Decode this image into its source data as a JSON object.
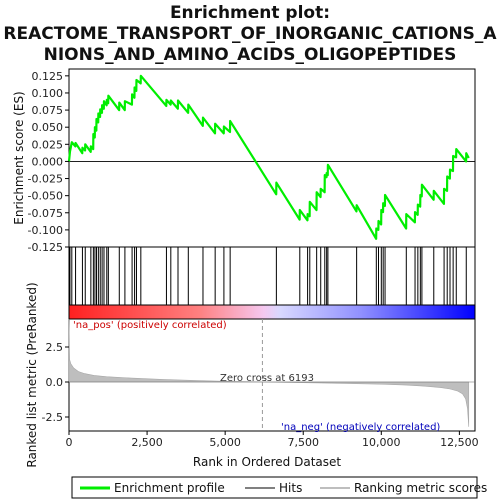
{
  "chart_data": {
    "type": "line",
    "title_lines": [
      "Enrichment plot:",
      "REACTOME_TRANSPORT_OF_INORGANIC_CATIONS_A",
      "NIONS_AND_AMINO_ACIDS_OLIGOPEPTIDES"
    ],
    "xlabel": "Rank in Ordered Dataset",
    "ylabel_top": "Enrichment score (ES)",
    "ylabel_bottom": "Ranked list metric (PreRanked)",
    "x_range": [
      0,
      13000
    ],
    "x_ticks": [
      0,
      2500,
      5000,
      7500,
      10000,
      12500
    ],
    "x_tick_labels": [
      "0",
      "2,500",
      "5,000",
      "7,500",
      "10,000",
      "12,500"
    ],
    "es_ylim": [
      -0.125,
      0.135
    ],
    "es_ticks": [
      0.125,
      0.1,
      0.075,
      0.05,
      0.025,
      0.0,
      -0.025,
      -0.05,
      -0.075,
      -0.1,
      -0.125
    ],
    "es_tick_labels": [
      "0.125",
      "0.100",
      "0.075",
      "0.050",
      "0.025",
      "0.000",
      "-0.025",
      "-0.050",
      "-0.075",
      "-0.100",
      "-0.125"
    ],
    "metric_ylim": [
      -3.5,
      4.5
    ],
    "metric_ticks": [
      2.5,
      0.0,
      -2.5
    ],
    "metric_tick_labels": [
      "2.5",
      "0.0",
      "-2.5"
    ],
    "zero_cross_label": "Zero cross at 6193",
    "zero_cross_x": 6193,
    "pos_label": "'na_pos' (positively correlated)",
    "neg_label": "'na_neg' (negatively correlated)",
    "n_genes": 12800,
    "hits": [
      30,
      90,
      210,
      430,
      520,
      700,
      780,
      830,
      880,
      940,
      1000,
      1060,
      1120,
      1210,
      1260,
      1610,
      1790,
      2020,
      2100,
      2160,
      2300,
      3120,
      3260,
      3490,
      3820,
      4290,
      4680,
      4960,
      5160,
      6640,
      7390,
      7640,
      7710,
      7930,
      8060,
      8190,
      8250,
      8290,
      9210,
      9840,
      9910,
      10000,
      10060,
      10120,
      10800,
      11080,
      11170,
      11250,
      11300,
      11680,
      12010,
      12110,
      12200,
      12300,
      12400,
      12720
    ],
    "es_profile": [
      [
        0,
        0.0
      ],
      [
        30,
        0.014
      ],
      [
        90,
        0.028
      ],
      [
        205,
        0.022
      ],
      [
        210,
        0.027
      ],
      [
        425,
        0.012
      ],
      [
        430,
        0.02
      ],
      [
        515,
        0.016
      ],
      [
        520,
        0.025
      ],
      [
        695,
        0.014
      ],
      [
        700,
        0.022
      ],
      [
        775,
        0.018
      ],
      [
        780,
        0.04
      ],
      [
        825,
        0.035
      ],
      [
        830,
        0.05
      ],
      [
        875,
        0.045
      ],
      [
        880,
        0.062
      ],
      [
        935,
        0.057
      ],
      [
        940,
        0.07
      ],
      [
        995,
        0.065
      ],
      [
        1000,
        0.076
      ],
      [
        1055,
        0.071
      ],
      [
        1060,
        0.082
      ],
      [
        1115,
        0.077
      ],
      [
        1120,
        0.088
      ],
      [
        1205,
        0.082
      ],
      [
        1210,
        0.09
      ],
      [
        1255,
        0.085
      ],
      [
        1260,
        0.096
      ],
      [
        1605,
        0.075
      ],
      [
        1610,
        0.086
      ],
      [
        1785,
        0.075
      ],
      [
        1790,
        0.088
      ],
      [
        2015,
        0.083
      ],
      [
        2020,
        0.098
      ],
      [
        2095,
        0.093
      ],
      [
        2100,
        0.108
      ],
      [
        2155,
        0.103
      ],
      [
        2160,
        0.119
      ],
      [
        2295,
        0.114
      ],
      [
        2300,
        0.125
      ],
      [
        3115,
        0.081
      ],
      [
        3120,
        0.09
      ],
      [
        3255,
        0.083
      ],
      [
        3260,
        0.089
      ],
      [
        3485,
        0.077
      ],
      [
        3490,
        0.089
      ],
      [
        3815,
        0.071
      ],
      [
        3820,
        0.083
      ],
      [
        4285,
        0.052
      ],
      [
        4290,
        0.064
      ],
      [
        4675,
        0.041
      ],
      [
        4680,
        0.055
      ],
      [
        4955,
        0.041
      ],
      [
        4960,
        0.051
      ],
      [
        5155,
        0.043
      ],
      [
        5160,
        0.059
      ],
      [
        6635,
        -0.048
      ],
      [
        6640,
        -0.031
      ],
      [
        7385,
        -0.085
      ],
      [
        7390,
        -0.071
      ],
      [
        7635,
        -0.086
      ],
      [
        7640,
        -0.077
      ],
      [
        7705,
        -0.08
      ],
      [
        7710,
        -0.059
      ],
      [
        7925,
        -0.071
      ],
      [
        7930,
        -0.045
      ],
      [
        8055,
        -0.052
      ],
      [
        8060,
        -0.04
      ],
      [
        8185,
        -0.045
      ],
      [
        8190,
        -0.02
      ],
      [
        8245,
        -0.023
      ],
      [
        8250,
        -0.017
      ],
      [
        8285,
        -0.02
      ],
      [
        8290,
        -0.005
      ],
      [
        9205,
        -0.073
      ],
      [
        9210,
        -0.064
      ],
      [
        9835,
        -0.113
      ],
      [
        9840,
        -0.098
      ],
      [
        9905,
        -0.1
      ],
      [
        9910,
        -0.087
      ],
      [
        9995,
        -0.092
      ],
      [
        10000,
        -0.071
      ],
      [
        10055,
        -0.074
      ],
      [
        10060,
        -0.061
      ],
      [
        10115,
        -0.065
      ],
      [
        10120,
        -0.049
      ],
      [
        10795,
        -0.098
      ],
      [
        10800,
        -0.077
      ],
      [
        11075,
        -0.089
      ],
      [
        11080,
        -0.074
      ],
      [
        11165,
        -0.078
      ],
      [
        11170,
        -0.063
      ],
      [
        11245,
        -0.066
      ],
      [
        11250,
        -0.049
      ],
      [
        11295,
        -0.051
      ],
      [
        11300,
        -0.034
      ],
      [
        11675,
        -0.056
      ],
      [
        11680,
        -0.043
      ],
      [
        12005,
        -0.062
      ],
      [
        12010,
        -0.04
      ],
      [
        12105,
        -0.043
      ],
      [
        12110,
        -0.022
      ],
      [
        12195,
        -0.025
      ],
      [
        12200,
        -0.012
      ],
      [
        12295,
        -0.014
      ],
      [
        12300,
        0.008
      ],
      [
        12395,
        0.006
      ],
      [
        12400,
        0.018
      ],
      [
        12715,
        0.0
      ],
      [
        12720,
        0.012
      ],
      [
        12800,
        0.005
      ]
    ],
    "metric_profile": [
      [
        0,
        4.5
      ],
      [
        20,
        1.6
      ],
      [
        60,
        1.3
      ],
      [
        150,
        1.0
      ],
      [
        300,
        0.75
      ],
      [
        500,
        0.6
      ],
      [
        800,
        0.47
      ],
      [
        1200,
        0.38
      ],
      [
        2000,
        0.28
      ],
      [
        3000,
        0.18
      ],
      [
        4000,
        0.11
      ],
      [
        5000,
        0.05
      ],
      [
        6193,
        0.0
      ],
      [
        7000,
        -0.03
      ],
      [
        8000,
        -0.07
      ],
      [
        9000,
        -0.11
      ],
      [
        10000,
        -0.16
      ],
      [
        10800,
        -0.22
      ],
      [
        11400,
        -0.3
      ],
      [
        11900,
        -0.4
      ],
      [
        12200,
        -0.5
      ],
      [
        12450,
        -0.65
      ],
      [
        12600,
        -0.85
      ],
      [
        12700,
        -1.2
      ],
      [
        12760,
        -1.9
      ],
      [
        12800,
        -3.2
      ]
    ],
    "colors": {
      "enrichment_line": "#00ee00",
      "hit_line": "#000000",
      "metric_fill": "#bebebe",
      "zero_line": "#999999",
      "pos_label": "#cc0000",
      "neg_label": "#0000bb",
      "band_pos": "#ff0000",
      "band_neg": "#0000ff"
    }
  },
  "legend": {
    "enrichment_label": "Enrichment profile",
    "hits_label": "Hits",
    "ranking_label": "Ranking metric scores"
  }
}
